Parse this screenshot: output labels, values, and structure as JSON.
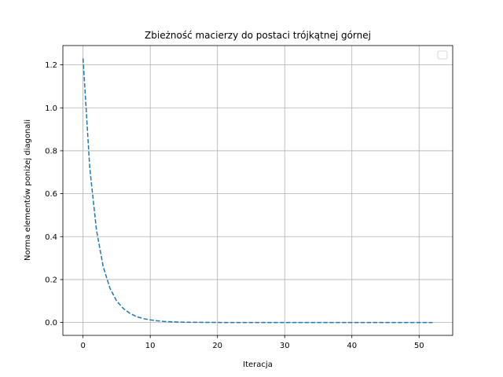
{
  "chart_data": {
    "type": "line",
    "title": "Zbieżność macierzy do postaci trójkątnej górnej",
    "xlabel": "Iteracja",
    "ylabel": "Norma elementów poniżej diagonali",
    "xlim": [
      -3,
      55
    ],
    "ylim": [
      -0.06,
      1.29
    ],
    "xticks": [
      0,
      10,
      20,
      30,
      40,
      50
    ],
    "yticks": [
      0.0,
      0.2,
      0.4,
      0.6,
      0.8,
      1.0,
      1.2
    ],
    "xtick_labels": [
      "0",
      "10",
      "20",
      "30",
      "40",
      "50"
    ],
    "ytick_labels": [
      "0.0",
      "0.2",
      "0.4",
      "0.6",
      "0.8",
      "1.0",
      "1.2"
    ],
    "grid": true,
    "legend": "top-right",
    "series": [
      {
        "color": "#1f77b4",
        "linestyle": "dashed",
        "x": [
          0,
          1,
          2,
          3,
          4,
          5,
          6,
          7,
          8,
          9,
          10,
          11,
          12,
          13,
          14,
          15,
          16,
          17,
          18,
          19,
          20,
          21,
          22,
          23,
          24,
          25,
          26,
          27,
          28,
          29,
          30,
          31,
          32,
          33,
          34,
          35,
          36,
          37,
          38,
          39,
          40,
          41,
          42,
          43,
          44,
          45,
          46,
          47,
          48,
          49,
          50,
          51,
          52
        ],
        "values": [
          1.23,
          0.72,
          0.43,
          0.26,
          0.16,
          0.1,
          0.065,
          0.042,
          0.027,
          0.018,
          0.012,
          0.008,
          0.005,
          0.0035,
          0.0023,
          0.0015,
          0.001,
          0.0007,
          0.0005,
          0.0003,
          0.0002,
          0.0001,
          0.0001,
          0,
          0,
          0,
          0,
          0,
          0,
          0,
          0,
          0,
          0,
          0,
          0,
          0,
          0,
          0,
          0,
          0,
          0,
          0,
          0,
          0,
          0,
          0,
          0,
          0,
          0,
          0,
          0,
          0,
          0
        ]
      }
    ]
  }
}
